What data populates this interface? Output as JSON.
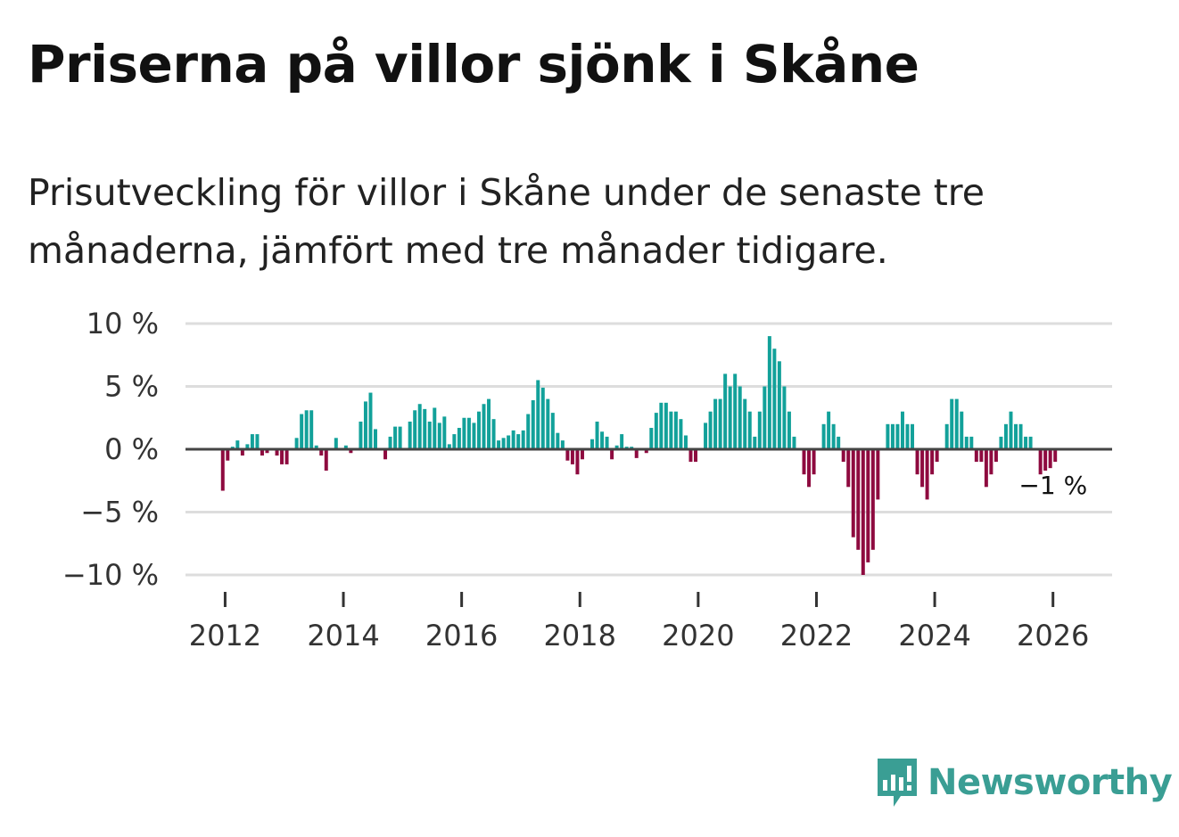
{
  "title": "Priserna på villor sjönk i Skåne",
  "subtitle": "Prisutveckling för villor i Skåne under de senaste tre månaderna, jämfört med tre månader tidigare.",
  "brand": {
    "name": "Newsworthy",
    "icon": "newsworthy-chart-bubble-icon",
    "color": "#3a9e94"
  },
  "colors": {
    "positive": "#12a19a",
    "negative": "#8e0a3f",
    "grid": "#dddddd",
    "zero": "#444444"
  },
  "chart_data": {
    "type": "bar",
    "title": "Priserna på villor sjönk i Skåne",
    "xlabel": "",
    "ylabel": "",
    "ylim": [
      -10.5,
      10
    ],
    "yticks": [
      10,
      5,
      0,
      -5,
      -10
    ],
    "ytick_labels": [
      "10 %",
      "5 %",
      "0 %",
      "−5 %",
      "−10 %"
    ],
    "xtick_years": [
      2012,
      2014,
      2016,
      2018,
      2020,
      2022,
      2024,
      2026
    ],
    "xtick_labels": [
      "2012",
      "2014",
      "2016",
      "2018",
      "2020",
      "2022",
      "2024",
      "2026"
    ],
    "x_start_year": 2011.33,
    "x_end_year": 2027.0,
    "first_bar_year": 2011.96,
    "bar_step_years": 0.0833,
    "values": [
      -3.3,
      -0.9,
      0.2,
      0.7,
      -0.5,
      0.4,
      1.2,
      1.2,
      -0.5,
      -0.3,
      0.1,
      -0.5,
      -1.2,
      -1.2,
      0.1,
      0.9,
      2.8,
      3.1,
      3.1,
      0.3,
      -0.5,
      -1.7,
      0.1,
      0.9,
      0.1,
      0.3,
      -0.3,
      0.1,
      2.2,
      3.8,
      4.5,
      1.6,
      0.1,
      -0.8,
      1.0,
      1.8,
      1.8,
      0.1,
      2.2,
      3.1,
      3.6,
      3.2,
      2.2,
      3.3,
      2.1,
      2.6,
      0.4,
      1.2,
      1.7,
      2.5,
      2.5,
      2.1,
      3.0,
      3.6,
      4.0,
      2.4,
      0.7,
      0.9,
      1.1,
      1.5,
      1.2,
      1.5,
      2.8,
      3.9,
      5.5,
      4.9,
      4.0,
      2.9,
      1.3,
      0.7,
      -0.9,
      -1.2,
      -2.0,
      -0.8,
      0.1,
      0.8,
      2.2,
      1.4,
      1.0,
      -0.8,
      0.3,
      1.2,
      0.2,
      0.2,
      -0.7,
      0.1,
      -0.3,
      1.7,
      2.9,
      3.7,
      3.7,
      3.0,
      3.0,
      2.4,
      1.1,
      -1.0,
      -1.0,
      0.1,
      2.1,
      3.0,
      4.0,
      4.0,
      6.0,
      5.0,
      6.0,
      5.0,
      4.0,
      3.0,
      1.0,
      3.0,
      5.0,
      9.0,
      8.0,
      7.0,
      5.0,
      3.0,
      1.0,
      0.1,
      -2.0,
      -3.0,
      -2.0,
      0.1,
      2.0,
      3.0,
      2.0,
      1.0,
      -1.0,
      -3.0,
      -7.0,
      -8.0,
      -10.0,
      -9.0,
      -8.0,
      -4.0,
      0.1,
      2.0,
      2.0,
      2.0,
      3.0,
      2.0,
      2.0,
      -2.0,
      -3.0,
      -4.0,
      -2.0,
      -1.0,
      0.1,
      2.0,
      4.0,
      4.0,
      3.0,
      1.0,
      1.0,
      -1.0,
      -1.0,
      -3.0,
      -2.0,
      -1.0,
      1.0,
      2.0,
      3.0,
      2.0,
      2.0,
      1.0,
      1.0,
      -0.1,
      -2.0,
      -1.7,
      -1.5,
      -1.0
    ],
    "annotation": {
      "text": "−1 %",
      "target": "last-bar"
    }
  }
}
